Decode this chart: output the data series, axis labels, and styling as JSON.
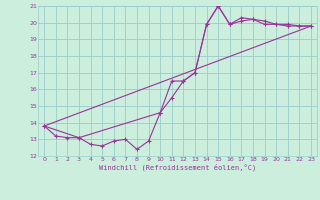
{
  "xlabel": "Windchill (Refroidissement éolien,°C)",
  "xlim": [
    -0.5,
    23.5
  ],
  "ylim": [
    12,
    21
  ],
  "xticks": [
    0,
    1,
    2,
    3,
    4,
    5,
    6,
    7,
    8,
    9,
    10,
    11,
    12,
    13,
    14,
    15,
    16,
    17,
    18,
    19,
    20,
    21,
    22,
    23
  ],
  "yticks": [
    12,
    13,
    14,
    15,
    16,
    17,
    18,
    19,
    20,
    21
  ],
  "bg_color": "#cceedd",
  "grid_color": "#99cccc",
  "line_color": "#993399",
  "line1_x": [
    0,
    1,
    2,
    3,
    4,
    5,
    6,
    7,
    8,
    9,
    10,
    11,
    12,
    13,
    14,
    15,
    16,
    17,
    18,
    19,
    20,
    21,
    22,
    23
  ],
  "line1_y": [
    13.8,
    13.2,
    13.1,
    13.1,
    12.7,
    12.6,
    12.9,
    13.0,
    12.4,
    12.9,
    14.6,
    15.5,
    16.5,
    17.0,
    19.9,
    21.0,
    19.9,
    20.1,
    20.2,
    19.9,
    19.9,
    19.8,
    19.8,
    19.8
  ],
  "line2_x": [
    0,
    3,
    10,
    11,
    12,
    13,
    14,
    15,
    16,
    17,
    18,
    19,
    20,
    21,
    22,
    23
  ],
  "line2_y": [
    13.8,
    13.1,
    14.6,
    16.5,
    16.5,
    17.0,
    19.9,
    21.0,
    19.9,
    20.3,
    20.2,
    20.1,
    19.9,
    19.9,
    19.8,
    19.8
  ],
  "line3_x": [
    0,
    23
  ],
  "line3_y": [
    13.8,
    19.8
  ]
}
